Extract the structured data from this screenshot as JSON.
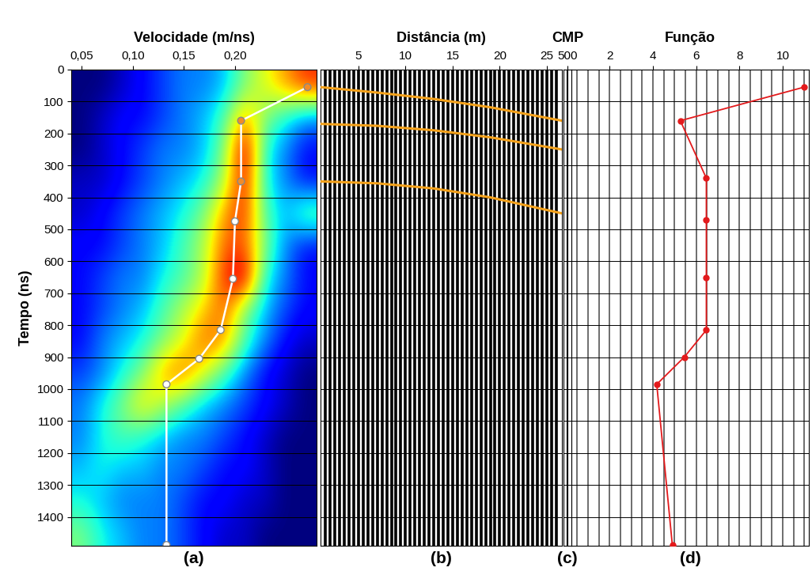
{
  "chart_data": [
    {
      "type": "heatmap",
      "panel_label": "(a)",
      "x_label": "Velocidade (m/ns)",
      "y_label": "Tempo (ns)",
      "xlim": [
        0.04,
        0.28
      ],
      "xticks": [
        {
          "value": 0.05,
          "label": "0,05"
        },
        {
          "value": 0.1,
          "label": "0,10"
        },
        {
          "value": 0.15,
          "label": "0,15"
        },
        {
          "value": 0.2,
          "label": "0,20"
        }
      ],
      "ylim": [
        1490,
        0
      ],
      "yticks": [
        0,
        100,
        200,
        300,
        400,
        500,
        600,
        700,
        800,
        900,
        1000,
        1100,
        1200,
        1300,
        1400
      ],
      "grid": true,
      "cells": {
        "x": [
          0.05,
          0.07,
          0.09,
          0.11,
          0.13,
          0.15,
          0.17,
          0.19,
          0.21,
          0.23,
          0.25,
          0.27
        ],
        "y": [
          50,
          150,
          250,
          350,
          450,
          550,
          650,
          750,
          850,
          950,
          1050,
          1150,
          1250,
          1350,
          1450
        ],
        "values": [
          [
            0.1,
            0.1,
            0.15,
            0.2,
            0.25,
            0.3,
            0.3,
            0.35,
            0.5,
            0.6,
            0.7,
            0.8
          ],
          [
            0.1,
            0.15,
            0.2,
            0.2,
            0.25,
            0.3,
            0.35,
            0.45,
            0.7,
            0.5,
            0.4,
            0.3
          ],
          [
            0.1,
            0.15,
            0.2,
            0.25,
            0.3,
            0.3,
            0.35,
            0.5,
            0.9,
            0.4,
            0.3,
            0.2
          ],
          [
            0.15,
            0.15,
            0.2,
            0.25,
            0.3,
            0.35,
            0.4,
            0.55,
            0.85,
            0.4,
            0.3,
            0.2
          ],
          [
            0.15,
            0.2,
            0.25,
            0.3,
            0.35,
            0.4,
            0.5,
            0.7,
            0.8,
            0.45,
            0.35,
            0.5
          ],
          [
            0.2,
            0.2,
            0.25,
            0.3,
            0.35,
            0.45,
            0.55,
            0.75,
            0.75,
            0.5,
            0.3,
            0.2
          ],
          [
            0.2,
            0.25,
            0.3,
            0.3,
            0.4,
            0.45,
            0.55,
            0.8,
            0.9,
            0.4,
            0.3,
            0.2
          ],
          [
            0.2,
            0.25,
            0.3,
            0.35,
            0.45,
            0.55,
            0.65,
            0.75,
            0.5,
            0.35,
            0.25,
            0.2
          ],
          [
            0.2,
            0.3,
            0.35,
            0.4,
            0.5,
            0.6,
            0.75,
            0.7,
            0.45,
            0.3,
            0.2,
            0.15
          ],
          [
            0.25,
            0.3,
            0.4,
            0.5,
            0.7,
            0.75,
            0.6,
            0.45,
            0.3,
            0.2,
            0.15,
            0.1
          ],
          [
            0.3,
            0.4,
            0.5,
            0.65,
            0.55,
            0.45,
            0.35,
            0.3,
            0.25,
            0.2,
            0.15,
            0.1
          ],
          [
            0.3,
            0.4,
            0.45,
            0.4,
            0.35,
            0.3,
            0.3,
            0.25,
            0.2,
            0.15,
            0.1,
            0.1
          ],
          [
            0.35,
            0.4,
            0.35,
            0.35,
            0.3,
            0.3,
            0.25,
            0.2,
            0.2,
            0.15,
            0.1,
            0.1
          ],
          [
            0.4,
            0.35,
            0.3,
            0.3,
            0.3,
            0.25,
            0.2,
            0.2,
            0.15,
            0.15,
            0.1,
            0.1
          ],
          [
            0.5,
            0.4,
            0.35,
            0.3,
            0.3,
            0.25,
            0.2,
            0.15,
            0.15,
            0.1,
            0.1,
            0.1
          ]
        ]
      },
      "picks": {
        "x": [
          0.271,
          0.206,
          0.206,
          0.2,
          0.198,
          0.186,
          0.165,
          0.133,
          0.133
        ],
        "y": [
          55,
          160,
          350,
          475,
          655,
          815,
          905,
          985,
          1488
        ],
        "color": "#ffffff",
        "colors": [
          "#f28c28",
          "#f28c28",
          "#f28c28",
          "#ffffff",
          "#ffffff",
          "#ffffff",
          "#ffffff",
          "#ffffff",
          "#ffffff"
        ]
      }
    },
    {
      "type": "seismic",
      "panel_label": "(b)",
      "x_label": "Distância (m)",
      "xlim": [
        1,
        26.6
      ],
      "xticks": [
        5,
        10,
        15,
        20,
        25
      ],
      "ylim": [
        1490,
        0
      ],
      "yticks": [
        0,
        100,
        200,
        300,
        400,
        500,
        600,
        700,
        800,
        900,
        1000,
        1100,
        1200,
        1300,
        1400
      ],
      "grid": true,
      "tick_labels": "x",
      "traces": [
        1.5,
        2,
        2.5,
        3,
        3.5,
        4,
        4.5,
        5,
        5.5,
        6,
        6.5,
        7,
        7.5,
        8,
        8.5,
        9,
        9.5,
        10,
        10.5,
        11,
        11.5,
        12,
        12.5,
        13,
        13.5,
        14,
        14.5,
        15,
        15.5,
        16,
        16.5,
        17,
        17.5,
        18,
        18.5,
        19,
        19.5,
        20,
        20.5,
        21,
        21.5,
        22,
        22.5,
        23,
        23.5,
        24,
        24.5,
        25,
        25.5,
        26
      ],
      "color": "#f5a21b",
      "curves": [
        {
          "x": [
            1,
            7,
            13,
            19,
            26.6
          ],
          "y": [
            55,
            72,
            92,
            118,
            160
          ]
        },
        {
          "x": [
            1,
            7,
            13,
            19,
            26.6
          ],
          "y": [
            170,
            176,
            190,
            212,
            250
          ]
        },
        {
          "x": [
            1,
            7,
            13,
            19,
            26.6
          ],
          "y": [
            350,
            356,
            372,
            400,
            450
          ]
        }
      ]
    },
    {
      "type": "trace",
      "panel_label": "(c)",
      "x_label": "CMP",
      "xlim": [
        499.5,
        500.5
      ],
      "xticks": [
        500
      ],
      "ylim": [
        1490,
        0
      ],
      "yticks": [
        0,
        100,
        200,
        300,
        400,
        500,
        600,
        700,
        800,
        900,
        1000,
        1100,
        1200,
        1300,
        1400
      ],
      "grid": true,
      "tick_labels": "x",
      "traces": [
        500
      ]
    },
    {
      "type": "line",
      "panel_label": "(d)",
      "x_label": "Função",
      "xlim": [
        0.25,
        11.2
      ],
      "xticks": [
        2,
        4,
        6,
        8,
        10
      ],
      "ylim": [
        1490,
        0
      ],
      "yticks": [
        0,
        100,
        200,
        300,
        400,
        500,
        600,
        700,
        800,
        900,
        1000,
        1100,
        1200,
        1300,
        1400
      ],
      "grid": true,
      "tick_labels": "x",
      "traces": [
        0.5,
        1,
        1.5,
        2,
        2.5,
        3,
        3.5,
        4,
        4.5,
        5,
        5.5,
        6,
        6.5,
        7,
        7.5,
        8,
        8.5,
        9,
        9.5,
        10,
        10.5,
        11
      ],
      "x": [
        10.98,
        5.27,
        6.47,
        6.47,
        6.47,
        6.47,
        5.45,
        4.18,
        4.9
      ],
      "y": [
        55,
        160,
        340,
        470,
        652,
        815,
        900,
        985,
        1488
      ],
      "color": "#e31a1c",
      "marker": "o"
    }
  ]
}
